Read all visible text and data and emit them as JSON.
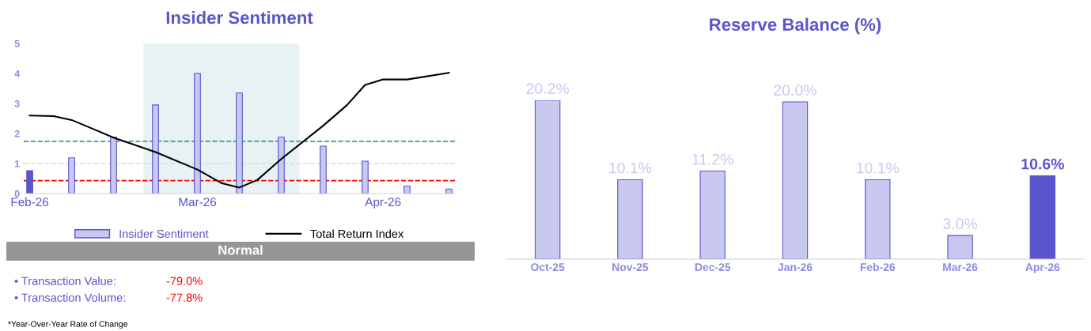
{
  "chart_data": [
    {
      "type": "bar",
      "title": "Insider Sentiment",
      "x": [
        "2026-02-01",
        "2026-02-08",
        "2026-02-15",
        "2026-02-22",
        "2026-03-01",
        "2026-03-08",
        "2026-03-15",
        "2026-03-22",
        "2026-03-29",
        "2026-04-05",
        "2026-04-12"
      ],
      "series": [
        {
          "name": "Insider Sentiment",
          "type": "bar",
          "color": "#c8c8f0",
          "colors": [
            "#5a55cc",
            "#c8c8f0",
            "#c8c8f0",
            "#c8c8f0",
            "#c8c8f0",
            "#c8c8f0",
            "#c8c8f0",
            "#c8c8f0",
            "#c8c8f0",
            "#c8c8f0",
            "#c8c8f0"
          ],
          "values": [
            0.76,
            1.19,
            1.88,
            2.95,
            4.0,
            3.35,
            1.88,
            1.58,
            1.08,
            0.25,
            0.15
          ]
        },
        {
          "name": "Total Return Index",
          "type": "line",
          "color": "#000000",
          "x": [
            "2026-02-01",
            "2026-02-05",
            "2026-02-08",
            "2026-02-11",
            "2026-02-15",
            "2026-02-22",
            "2026-03-01",
            "2026-03-05",
            "2026-03-08",
            "2026-03-11",
            "2026-03-15",
            "2026-03-22",
            "2026-03-26",
            "2026-03-29",
            "2026-04-01",
            "2026-04-05",
            "2026-04-12"
          ],
          "values": [
            2.6,
            2.58,
            2.45,
            2.2,
            1.86,
            1.38,
            0.8,
            0.35,
            0.2,
            0.45,
            1.15,
            2.26,
            2.95,
            3.62,
            3.8,
            3.8,
            4.02
          ]
        }
      ],
      "xlim": [
        "2026-01-31",
        "2026-04-13"
      ],
      "xticks": [
        {
          "value": "2026-02-01",
          "label": "Feb-26"
        },
        {
          "value": "2026-03-01",
          "label": "Mar-26"
        },
        {
          "value": "2026-04-01",
          "label": "Apr-26"
        }
      ],
      "ylim": [
        0,
        5
      ],
      "yticks": [
        0,
        1,
        2,
        3,
        4,
        5
      ],
      "grid": false,
      "legend": "bottom",
      "bands": [
        {
          "axis": "x",
          "from": "2026-02-20",
          "to": "2026-03-18",
          "color": "#e8f1f3"
        }
      ],
      "ref_lines": [
        {
          "axis": "y",
          "value": 1.74,
          "color": "#2a9d9d",
          "line_style": "dashed"
        },
        {
          "axis": "y",
          "value": 1.0,
          "color": "#dddddd",
          "line_style": "dashed"
        },
        {
          "axis": "y",
          "value": 0.43,
          "color": "#ff0000",
          "line_style": "dashed"
        }
      ],
      "annotations": [
        "Normal",
        "• Transaction Value:",
        "-79.0%",
        "• Transaction Volume:",
        "-77.8%",
        "*Year-Over-Year Rate of Change"
      ]
    },
    {
      "type": "bar",
      "title": "Reserve Balance (%)",
      "categories": [
        "Oct-25",
        "Nov-25",
        "Dec-25",
        "Jan-26",
        "Feb-26",
        "Mar-26",
        "Apr-26"
      ],
      "values": [
        20.2,
        10.1,
        11.2,
        20.0,
        10.1,
        3.0,
        10.6
      ],
      "colors": [
        "#c8c8f0",
        "#c8c8f0",
        "#c8c8f0",
        "#c8c8f0",
        "#c8c8f0",
        "#c8c8f0",
        "#5a55cc"
      ],
      "value_labels": [
        "20.2%",
        "10.1%",
        "11.2%",
        "20.0%",
        "10.1%",
        "3.0%",
        "10.6%"
      ]
    }
  ]
}
